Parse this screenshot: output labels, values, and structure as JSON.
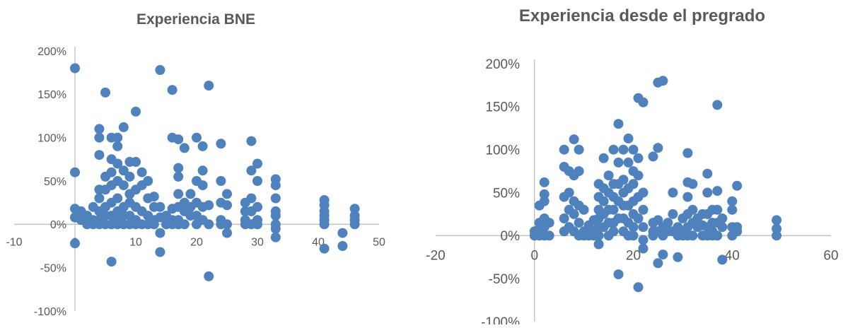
{
  "chart_data": [
    {
      "type": "scatter",
      "title": "Experiencia BNE",
      "xlabel": "",
      "ylabel": "",
      "xlim": [
        -10,
        50
      ],
      "ylim": [
        -100,
        200
      ],
      "x_ticks": [
        -10,
        0,
        10,
        20,
        30,
        40,
        50
      ],
      "y_ticks": [
        -100,
        -50,
        0,
        50,
        100,
        150,
        200
      ],
      "x_tick_labels": [
        "-10",
        "0",
        "10",
        "20",
        "30",
        "40",
        "50"
      ],
      "y_tick_labels": [
        "-100%",
        "-50%",
        "0%",
        "50%",
        "100%",
        "150%",
        "200%"
      ],
      "grid": false,
      "legend": "none",
      "marker_color": "#4f81bd",
      "points": [
        [
          0,
          180
        ],
        [
          0,
          60
        ],
        [
          0,
          18
        ],
        [
          0,
          8
        ],
        [
          0,
          -22
        ],
        [
          1,
          15
        ],
        [
          1,
          5
        ],
        [
          2,
          10
        ],
        [
          2,
          0
        ],
        [
          3,
          20
        ],
        [
          3,
          5
        ],
        [
          3,
          0
        ],
        [
          4,
          110
        ],
        [
          4,
          100
        ],
        [
          4,
          80
        ],
        [
          4,
          40
        ],
        [
          4,
          30
        ],
        [
          4,
          15
        ],
        [
          4,
          5
        ],
        [
          4,
          0
        ],
        [
          5,
          152
        ],
        [
          5,
          55
        ],
        [
          5,
          40
        ],
        [
          5,
          20
        ],
        [
          5,
          10
        ],
        [
          5,
          0
        ],
        [
          6,
          100
        ],
        [
          6,
          75
        ],
        [
          6,
          60
        ],
        [
          6,
          45
        ],
        [
          6,
          25
        ],
        [
          6,
          10
        ],
        [
          6,
          0
        ],
        [
          6,
          -43
        ],
        [
          7,
          100
        ],
        [
          7,
          90
        ],
        [
          7,
          70
        ],
        [
          7,
          50
        ],
        [
          7,
          30
        ],
        [
          7,
          15
        ],
        [
          7,
          5
        ],
        [
          7,
          0
        ],
        [
          8,
          112
        ],
        [
          8,
          62
        ],
        [
          8,
          45
        ],
        [
          8,
          20
        ],
        [
          8,
          10
        ],
        [
          8,
          0
        ],
        [
          9,
          72
        ],
        [
          9,
          55
        ],
        [
          9,
          35
        ],
        [
          9,
          25
        ],
        [
          9,
          10
        ],
        [
          9,
          0
        ],
        [
          10,
          130
        ],
        [
          10,
          72
        ],
        [
          10,
          40
        ],
        [
          10,
          20
        ],
        [
          10,
          5
        ],
        [
          10,
          0
        ],
        [
          11,
          60
        ],
        [
          11,
          45
        ],
        [
          11,
          15
        ],
        [
          11,
          0
        ],
        [
          12,
          50
        ],
        [
          12,
          30
        ],
        [
          12,
          10
        ],
        [
          12,
          0
        ],
        [
          13,
          32
        ],
        [
          13,
          20
        ],
        [
          13,
          5
        ],
        [
          13,
          0
        ],
        [
          14,
          178
        ],
        [
          14,
          20
        ],
        [
          14,
          8
        ],
        [
          14,
          -10
        ],
        [
          14,
          -32
        ],
        [
          15,
          10
        ],
        [
          15,
          0
        ],
        [
          16,
          155
        ],
        [
          16,
          100
        ],
        [
          16,
          18
        ],
        [
          16,
          5
        ],
        [
          16,
          0
        ],
        [
          17,
          98
        ],
        [
          17,
          65
        ],
        [
          17,
          55
        ],
        [
          17,
          35
        ],
        [
          17,
          20
        ],
        [
          17,
          5
        ],
        [
          17,
          0
        ],
        [
          18,
          88
        ],
        [
          18,
          25
        ],
        [
          18,
          15
        ],
        [
          18,
          0
        ],
        [
          19,
          35
        ],
        [
          19,
          20
        ],
        [
          19,
          10
        ],
        [
          20,
          100
        ],
        [
          20,
          50
        ],
        [
          20,
          25
        ],
        [
          20,
          10
        ],
        [
          20,
          0
        ],
        [
          21,
          90
        ],
        [
          21,
          62
        ],
        [
          21,
          45
        ],
        [
          21,
          20
        ],
        [
          21,
          5
        ],
        [
          22,
          160
        ],
        [
          22,
          22
        ],
        [
          22,
          0
        ],
        [
          22,
          -60
        ],
        [
          24,
          93
        ],
        [
          24,
          50
        ],
        [
          24,
          25
        ],
        [
          24,
          5
        ],
        [
          24,
          0
        ],
        [
          25,
          35
        ],
        [
          25,
          22
        ],
        [
          25,
          0
        ],
        [
          25,
          -10
        ],
        [
          28,
          25
        ],
        [
          28,
          15
        ],
        [
          28,
          5
        ],
        [
          28,
          0
        ],
        [
          29,
          96
        ],
        [
          29,
          62
        ],
        [
          29,
          30
        ],
        [
          29,
          15
        ],
        [
          29,
          0
        ],
        [
          30,
          70
        ],
        [
          30,
          50
        ],
        [
          30,
          20
        ],
        [
          30,
          5
        ],
        [
          30,
          0
        ],
        [
          33,
          52
        ],
        [
          33,
          45
        ],
        [
          33,
          30
        ],
        [
          33,
          15
        ],
        [
          33,
          10
        ],
        [
          33,
          0
        ],
        [
          33,
          -5
        ],
        [
          33,
          -15
        ],
        [
          41,
          28
        ],
        [
          41,
          22
        ],
        [
          41,
          15
        ],
        [
          41,
          10
        ],
        [
          41,
          5
        ],
        [
          41,
          0
        ],
        [
          41,
          -28
        ],
        [
          44,
          -10
        ],
        [
          44,
          -25
        ],
        [
          46,
          18
        ],
        [
          46,
          10
        ],
        [
          46,
          5
        ],
        [
          46,
          0
        ]
      ]
    },
    {
      "type": "scatter",
      "title": "Experiencia desde el pregrado",
      "xlabel": "",
      "ylabel": "",
      "xlim": [
        -20,
        60
      ],
      "ylim": [
        -100,
        200
      ],
      "x_ticks": [
        -20,
        0,
        20,
        40,
        60
      ],
      "y_ticks": [
        -100,
        -50,
        0,
        50,
        100,
        150,
        200
      ],
      "x_tick_labels": [
        "-20",
        "0",
        "20",
        "40",
        "60"
      ],
      "y_tick_labels": [
        "-100%",
        "-50%",
        "0%",
        "50%",
        "100%",
        "150%",
        "200%"
      ],
      "grid": false,
      "legend": "none",
      "marker_color": "#4f81bd",
      "points": [
        [
          0,
          5
        ],
        [
          0,
          0
        ],
        [
          1,
          35
        ],
        [
          1,
          15
        ],
        [
          1,
          8
        ],
        [
          1,
          0
        ],
        [
          2,
          62
        ],
        [
          2,
          48
        ],
        [
          2,
          40
        ],
        [
          2,
          20
        ],
        [
          2,
          10
        ],
        [
          2,
          0
        ],
        [
          3,
          15
        ],
        [
          3,
          0
        ],
        [
          6,
          100
        ],
        [
          6,
          80
        ],
        [
          6,
          45
        ],
        [
          6,
          20
        ],
        [
          6,
          5
        ],
        [
          7,
          75
        ],
        [
          7,
          50
        ],
        [
          7,
          30
        ],
        [
          7,
          10
        ],
        [
          8,
          112
        ],
        [
          8,
          70
        ],
        [
          8,
          40
        ],
        [
          8,
          25
        ],
        [
          8,
          5
        ],
        [
          9,
          100
        ],
        [
          9,
          75
        ],
        [
          9,
          35
        ],
        [
          9,
          15
        ],
        [
          9,
          0
        ],
        [
          10,
          30
        ],
        [
          10,
          5
        ],
        [
          10,
          0
        ],
        [
          11,
          12
        ],
        [
          11,
          0
        ],
        [
          12,
          18
        ],
        [
          12,
          5
        ],
        [
          12,
          0
        ],
        [
          13,
          60
        ],
        [
          13,
          45
        ],
        [
          13,
          30
        ],
        [
          13,
          20
        ],
        [
          13,
          10
        ],
        [
          13,
          0
        ],
        [
          13,
          -10
        ],
        [
          14,
          90
        ],
        [
          14,
          55
        ],
        [
          14,
          40
        ],
        [
          14,
          25
        ],
        [
          14,
          10
        ],
        [
          15,
          70
        ],
        [
          15,
          50
        ],
        [
          15,
          30
        ],
        [
          15,
          15
        ],
        [
          15,
          0
        ],
        [
          16,
          100
        ],
        [
          16,
          60
        ],
        [
          16,
          45
        ],
        [
          16,
          30
        ],
        [
          16,
          15
        ],
        [
          16,
          5
        ],
        [
          17,
          130
        ],
        [
          17,
          85
        ],
        [
          17,
          60
        ],
        [
          17,
          40
        ],
        [
          17,
          20
        ],
        [
          17,
          -45
        ],
        [
          18,
          100
        ],
        [
          18,
          65
        ],
        [
          18,
          50
        ],
        [
          18,
          35
        ],
        [
          18,
          20
        ],
        [
          18,
          5
        ],
        [
          19,
          113
        ],
        [
          19,
          85
        ],
        [
          19,
          55
        ],
        [
          19,
          35
        ],
        [
          19,
          15
        ],
        [
          19,
          0
        ],
        [
          20,
          100
        ],
        [
          20,
          75
        ],
        [
          20,
          60
        ],
        [
          20,
          40
        ],
        [
          20,
          25
        ],
        [
          20,
          10
        ],
        [
          20,
          0
        ],
        [
          21,
          160
        ],
        [
          21,
          90
        ],
        [
          21,
          70
        ],
        [
          21,
          45
        ],
        [
          21,
          20
        ],
        [
          21,
          -60
        ],
        [
          22,
          155
        ],
        [
          22,
          50
        ],
        [
          22,
          30
        ],
        [
          22,
          10
        ],
        [
          22,
          -5
        ],
        [
          22,
          -15
        ],
        [
          24,
          92
        ],
        [
          24,
          15
        ],
        [
          24,
          5
        ],
        [
          24,
          0
        ],
        [
          25,
          178
        ],
        [
          25,
          102
        ],
        [
          25,
          18
        ],
        [
          25,
          5
        ],
        [
          25,
          -32
        ],
        [
          26,
          180
        ],
        [
          26,
          10
        ],
        [
          26,
          0
        ],
        [
          26,
          -22
        ],
        [
          27,
          15
        ],
        [
          27,
          5
        ],
        [
          28,
          50
        ],
        [
          28,
          25
        ],
        [
          28,
          5
        ],
        [
          29,
          10
        ],
        [
          29,
          0
        ],
        [
          29,
          -25
        ],
        [
          30,
          20
        ],
        [
          30,
          5
        ],
        [
          30,
          0
        ],
        [
          31,
          96
        ],
        [
          31,
          62
        ],
        [
          31,
          45
        ],
        [
          31,
          25
        ],
        [
          31,
          10
        ],
        [
          31,
          0
        ],
        [
          32,
          60
        ],
        [
          32,
          30
        ],
        [
          32,
          15
        ],
        [
          32,
          0
        ],
        [
          33,
          20
        ],
        [
          33,
          10
        ],
        [
          34,
          25
        ],
        [
          34,
          12
        ],
        [
          34,
          0
        ],
        [
          35,
          72
        ],
        [
          35,
          50
        ],
        [
          35,
          25
        ],
        [
          35,
          10
        ],
        [
          35,
          0
        ],
        [
          36,
          30
        ],
        [
          36,
          15
        ],
        [
          36,
          5
        ],
        [
          36,
          0
        ],
        [
          37,
          152
        ],
        [
          37,
          52
        ],
        [
          37,
          30
        ],
        [
          37,
          15
        ],
        [
          37,
          0
        ],
        [
          38,
          20
        ],
        [
          38,
          10
        ],
        [
          38,
          -28
        ],
        [
          40,
          40
        ],
        [
          40,
          30
        ],
        [
          40,
          10
        ],
        [
          40,
          0
        ],
        [
          41,
          58
        ],
        [
          41,
          10
        ],
        [
          41,
          5
        ],
        [
          49,
          18
        ],
        [
          49,
          8
        ],
        [
          49,
          0
        ]
      ]
    }
  ]
}
